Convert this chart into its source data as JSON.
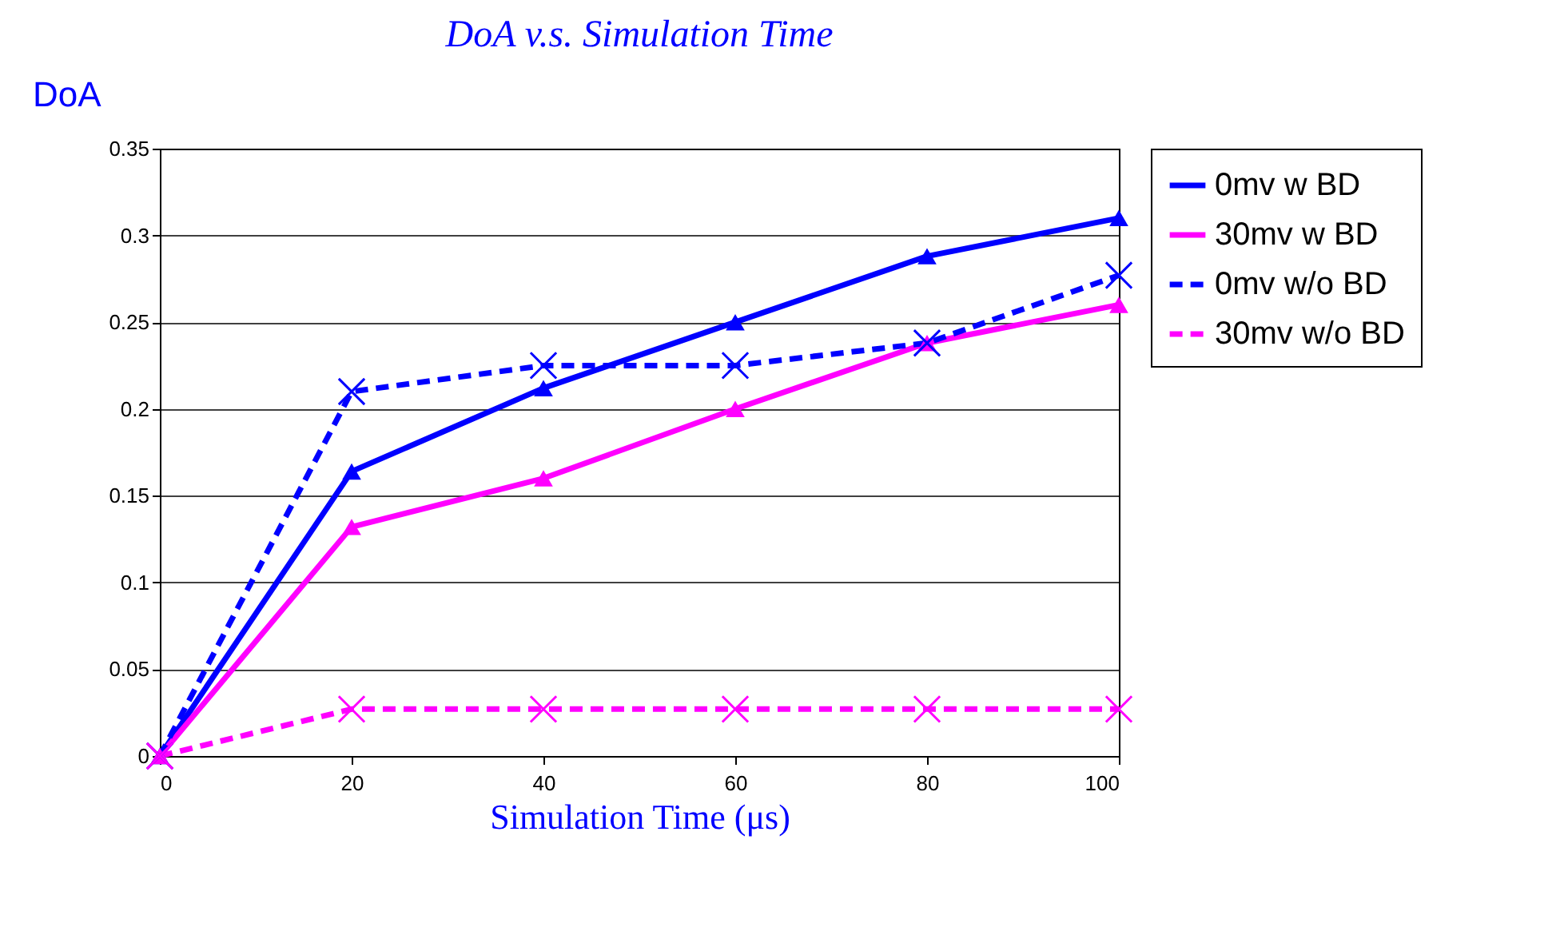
{
  "chart_data": {
    "type": "line",
    "title": "DoA v.s. Simulation Time",
    "xlabel": "Simulation Time (μs)",
    "ylabel": "DoA",
    "x": [
      0,
      20,
      40,
      60,
      80,
      100
    ],
    "series": [
      {
        "name": "0mv w BD",
        "color": "#0000ff",
        "marker": "triangle",
        "line_style": "solid",
        "values": [
          0,
          0.164,
          0.212,
          0.25,
          0.288,
          0.31
        ]
      },
      {
        "name": "30mv w BD",
        "color": "#ff00ff",
        "marker": "triangle",
        "line_style": "solid",
        "values": [
          0,
          0.132,
          0.16,
          0.2,
          0.238,
          0.26
        ]
      },
      {
        "name": "0mv w/o BD",
        "color": "#0000ff",
        "marker": "cross",
        "line_style": "dashed",
        "values": [
          0,
          0.21,
          0.225,
          0.225,
          0.238,
          0.277
        ]
      },
      {
        "name": "30mv w/o BD",
        "color": "#ff00ff",
        "marker": "cross",
        "line_style": "dashed",
        "values": [
          0,
          0.027,
          0.027,
          0.027,
          0.027,
          0.027
        ]
      }
    ],
    "xlim": [
      0,
      100
    ],
    "xticks": [
      0,
      20,
      40,
      60,
      80,
      100
    ],
    "ylim": [
      0,
      0.35
    ],
    "yticks": [
      0,
      0.05,
      0.1,
      0.15,
      0.2,
      0.25,
      0.3,
      0.35
    ],
    "grid": "y",
    "legend": "right"
  }
}
